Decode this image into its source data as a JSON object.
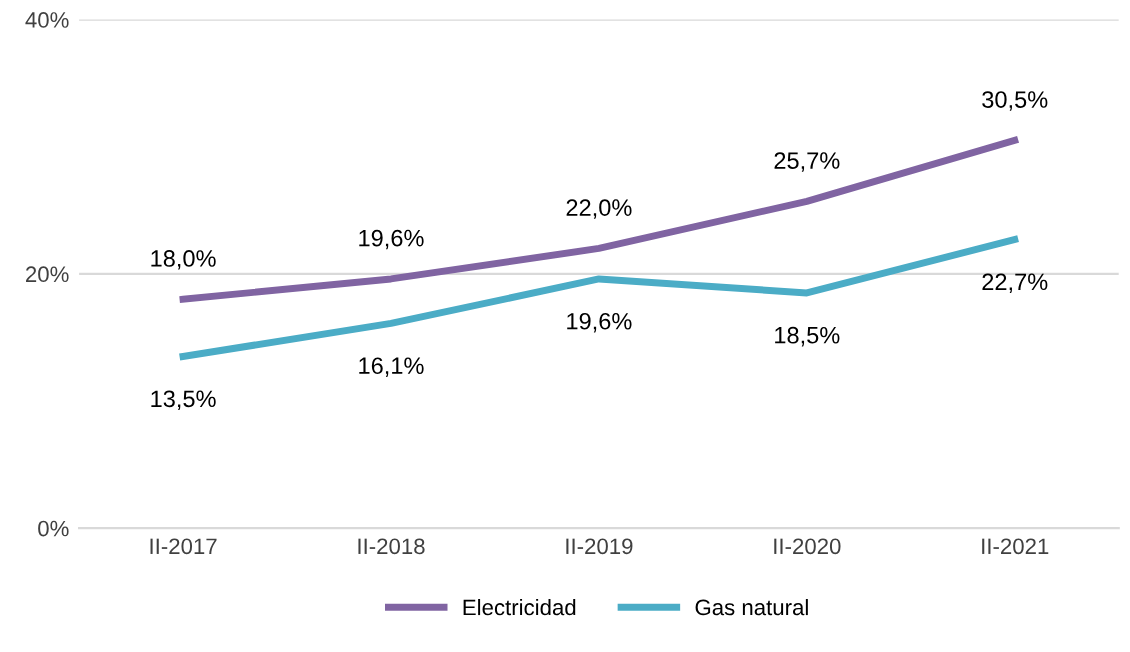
{
  "chart_data": {
    "type": "line",
    "categories": [
      "II-2017",
      "II-2018",
      "II-2019",
      "II-2020",
      "II-2021"
    ],
    "series": [
      {
        "name": "Electricidad",
        "color": "#8064a2",
        "values": [
          18.0,
          19.6,
          22.0,
          25.7,
          30.5
        ],
        "value_labels": [
          "18,0%",
          "19,6%",
          "22,0%",
          "25,7%",
          "30,5%"
        ]
      },
      {
        "name": "Gas natural",
        "color": "#4bacc6",
        "values": [
          13.5,
          16.1,
          19.6,
          18.5,
          22.7
        ],
        "value_labels": [
          "13,5%",
          "16,1%",
          "19,6%",
          "18,5%",
          "22,7%"
        ]
      }
    ],
    "ylim": [
      0,
      40
    ],
    "yticks": [
      {
        "value": 0,
        "label": "0%"
      },
      {
        "value": 20,
        "label": "20%"
      },
      {
        "value": 40,
        "label": "40%"
      }
    ],
    "grid": "y",
    "legend": "bottom",
    "marker": "none",
    "line_style": "solid"
  }
}
